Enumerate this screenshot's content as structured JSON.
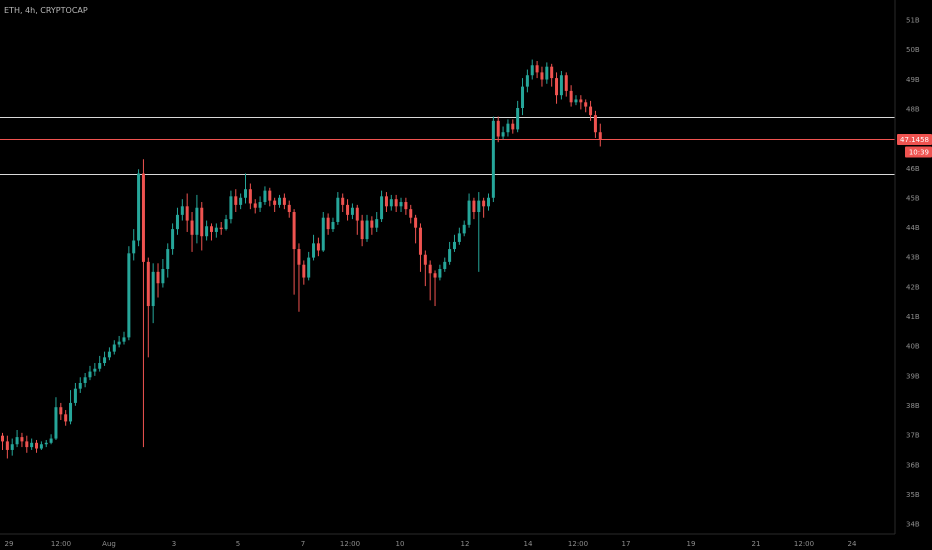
{
  "header": {
    "symbol": "ETH, 4h, CRYPTOCAP"
  },
  "price_tag": {
    "value": "47.1458",
    "countdown": "10:39",
    "color": "#ef5350"
  },
  "colors": {
    "up": "#26a69a",
    "down": "#ef5350",
    "background": "#000000",
    "hline": "#d9d9d9"
  },
  "axes": {
    "y_ticks": [
      "51B",
      "50B",
      "49B",
      "48B",
      "47B",
      "46B",
      "45B",
      "44B",
      "43B",
      "42B",
      "41B",
      "40B",
      "39B",
      "38B",
      "37B",
      "36B",
      "35B",
      "34B"
    ],
    "x_ticks": [
      "29",
      "12:00",
      "Aug",
      "3",
      "5",
      "7",
      "12:00",
      "10",
      "12",
      "14",
      "12:00",
      "17",
      "19",
      "21",
      "12:00",
      "24"
    ]
  },
  "chart_data": {
    "type": "candlestick",
    "title": "ETH, 4h, CRYPTOCAP",
    "y_unit": "B",
    "ylim": [
      33.3,
      51.9
    ],
    "current_value": 47.1458,
    "horizontal_levels": [
      {
        "value": 47.95,
        "color": "#d9d9d9"
      },
      {
        "value": 47.1458,
        "color": "#ef5350"
      },
      {
        "value": 45.95,
        "color": "#d9d9d9"
      }
    ],
    "candles": [
      [
        36.75,
        36.55,
        36.25,
        36.85
      ],
      [
        36.55,
        36.25,
        35.95,
        36.75
      ],
      [
        36.25,
        36.45,
        36.05,
        36.65
      ],
      [
        36.45,
        36.7,
        36.35,
        36.95
      ],
      [
        36.7,
        36.55,
        36.35,
        36.85
      ],
      [
        36.55,
        36.35,
        36.15,
        36.75
      ],
      [
        36.35,
        36.5,
        36.25,
        36.65
      ],
      [
        36.5,
        36.3,
        36.15,
        36.6
      ],
      [
        36.3,
        36.45,
        36.25,
        36.55
      ],
      [
        36.45,
        36.5,
        36.35,
        36.6
      ],
      [
        36.5,
        36.65,
        36.45,
        36.8
      ],
      [
        36.65,
        37.75,
        36.6,
        38.1
      ],
      [
        37.75,
        37.5,
        37.3,
        37.9
      ],
      [
        37.5,
        37.25,
        37.1,
        37.65
      ],
      [
        37.25,
        37.9,
        37.15,
        38.35
      ],
      [
        37.9,
        38.4,
        37.8,
        38.6
      ],
      [
        38.4,
        38.6,
        38.25,
        38.8
      ],
      [
        38.6,
        38.8,
        38.45,
        38.95
      ],
      [
        38.8,
        39.0,
        38.7,
        39.2
      ],
      [
        39.0,
        39.1,
        38.85,
        39.3
      ],
      [
        39.1,
        39.3,
        39.0,
        39.55
      ],
      [
        39.3,
        39.5,
        39.2,
        39.7
      ],
      [
        39.5,
        39.7,
        39.4,
        39.85
      ],
      [
        39.7,
        39.95,
        39.6,
        40.1
      ],
      [
        39.95,
        40.05,
        39.85,
        40.25
      ],
      [
        40.05,
        40.2,
        39.95,
        40.4
      ],
      [
        40.2,
        43.15,
        40.1,
        43.4
      ],
      [
        43.15,
        43.6,
        42.9,
        44.0
      ],
      [
        43.6,
        45.95,
        43.4,
        46.1
      ],
      [
        45.95,
        42.85,
        36.35,
        46.45
      ],
      [
        42.85,
        41.3,
        39.5,
        43.0
      ],
      [
        41.3,
        42.5,
        40.7,
        42.8
      ],
      [
        42.5,
        42.1,
        41.6,
        42.8
      ],
      [
        42.1,
        42.6,
        41.95,
        42.95
      ],
      [
        42.6,
        43.3,
        42.3,
        43.5
      ],
      [
        43.3,
        44.0,
        43.1,
        44.2
      ],
      [
        44.0,
        44.5,
        43.8,
        44.75
      ],
      [
        44.5,
        44.8,
        44.3,
        45.05
      ],
      [
        44.8,
        44.3,
        43.9,
        45.25
      ],
      [
        44.3,
        43.8,
        43.2,
        44.6
      ],
      [
        43.8,
        44.75,
        43.5,
        45.2
      ],
      [
        44.75,
        43.75,
        43.25,
        44.95
      ],
      [
        43.75,
        44.1,
        43.6,
        44.3
      ],
      [
        44.1,
        43.9,
        43.6,
        44.2
      ],
      [
        43.9,
        44.05,
        43.7,
        44.2
      ],
      [
        44.05,
        44.0,
        43.8,
        44.25
      ],
      [
        44.0,
        44.35,
        43.95,
        44.5
      ],
      [
        44.35,
        45.15,
        44.2,
        45.35
      ],
      [
        45.15,
        44.85,
        44.6,
        45.4
      ],
      [
        44.85,
        45.1,
        44.7,
        45.25
      ],
      [
        45.1,
        45.4,
        44.9,
        45.95
      ],
      [
        45.4,
        44.9,
        44.7,
        45.6
      ],
      [
        44.9,
        44.75,
        44.55,
        45.05
      ],
      [
        44.75,
        44.95,
        44.6,
        45.15
      ],
      [
        44.95,
        45.35,
        44.85,
        45.5
      ],
      [
        45.35,
        45.0,
        44.8,
        45.45
      ],
      [
        45.0,
        44.85,
        44.6,
        45.1
      ],
      [
        44.85,
        45.1,
        44.75,
        45.2
      ],
      [
        45.1,
        44.85,
        44.7,
        45.25
      ],
      [
        44.85,
        44.6,
        44.4,
        45.0
      ],
      [
        44.6,
        43.3,
        41.7,
        44.7
      ],
      [
        43.3,
        42.75,
        41.1,
        43.5
      ],
      [
        42.75,
        42.3,
        42.05,
        42.9
      ],
      [
        42.3,
        43.0,
        42.2,
        43.2
      ],
      [
        43.0,
        43.5,
        42.9,
        43.8
      ],
      [
        43.5,
        43.25,
        43.05,
        43.7
      ],
      [
        43.25,
        44.4,
        43.2,
        44.6
      ],
      [
        44.4,
        44.0,
        43.8,
        44.55
      ],
      [
        44.0,
        44.25,
        43.9,
        44.4
      ],
      [
        44.25,
        45.1,
        44.15,
        45.3
      ],
      [
        45.1,
        44.85,
        44.6,
        45.25
      ],
      [
        44.85,
        44.5,
        44.3,
        45.05
      ],
      [
        44.5,
        44.75,
        44.35,
        44.9
      ],
      [
        44.75,
        44.3,
        43.8,
        44.85
      ],
      [
        44.3,
        43.65,
        43.4,
        44.5
      ],
      [
        43.65,
        44.3,
        43.55,
        44.5
      ],
      [
        44.3,
        44.05,
        43.8,
        44.45
      ],
      [
        44.05,
        44.35,
        43.9,
        44.6
      ],
      [
        44.35,
        45.15,
        44.25,
        45.35
      ],
      [
        45.15,
        44.8,
        44.6,
        45.3
      ],
      [
        44.8,
        45.05,
        44.65,
        45.2
      ],
      [
        45.05,
        44.8,
        44.6,
        45.2
      ],
      [
        44.8,
        44.95,
        44.6,
        45.1
      ],
      [
        44.95,
        44.7,
        44.5,
        45.1
      ],
      [
        44.7,
        44.4,
        44.2,
        44.85
      ],
      [
        44.4,
        44.05,
        43.5,
        44.5
      ],
      [
        44.05,
        43.1,
        42.5,
        44.2
      ],
      [
        43.1,
        42.75,
        42.0,
        43.25
      ],
      [
        42.75,
        42.45,
        41.5,
        42.9
      ],
      [
        42.45,
        42.3,
        41.3,
        42.55
      ],
      [
        42.3,
        42.6,
        42.2,
        42.75
      ],
      [
        42.6,
        42.85,
        42.5,
        43.0
      ],
      [
        42.85,
        43.3,
        42.75,
        43.55
      ],
      [
        43.3,
        43.55,
        43.2,
        43.8
      ],
      [
        43.55,
        43.85,
        43.45,
        44.05
      ],
      [
        43.85,
        44.15,
        43.75,
        44.3
      ],
      [
        44.15,
        45.0,
        44.05,
        45.25
      ],
      [
        45.0,
        44.6,
        44.35,
        45.1
      ],
      [
        44.6,
        45.0,
        42.5,
        45.3
      ],
      [
        45.0,
        44.8,
        44.4,
        45.1
      ],
      [
        44.8,
        45.1,
        44.65,
        45.25
      ],
      [
        45.1,
        47.8,
        44.95,
        47.95
      ],
      [
        47.8,
        47.25,
        47.05,
        47.95
      ],
      [
        47.25,
        47.4,
        47.15,
        47.6
      ],
      [
        47.4,
        47.7,
        47.25,
        47.85
      ],
      [
        47.7,
        47.5,
        47.35,
        47.85
      ],
      [
        47.5,
        48.25,
        47.4,
        48.5
      ],
      [
        48.25,
        49.0,
        48.0,
        49.3
      ],
      [
        49.0,
        49.4,
        48.8,
        49.6
      ],
      [
        49.4,
        49.75,
        49.25,
        49.95
      ],
      [
        49.75,
        49.5,
        49.3,
        49.9
      ],
      [
        49.5,
        49.25,
        49.0,
        49.7
      ],
      [
        49.25,
        49.7,
        49.1,
        49.85
      ],
      [
        49.7,
        49.3,
        49.0,
        49.8
      ],
      [
        49.3,
        48.7,
        48.4,
        49.5
      ],
      [
        48.7,
        49.4,
        48.55,
        49.55
      ],
      [
        49.4,
        48.85,
        48.65,
        49.5
      ],
      [
        48.85,
        48.45,
        48.3,
        49.05
      ],
      [
        48.45,
        48.55,
        48.35,
        48.7
      ],
      [
        48.55,
        48.45,
        48.2,
        48.7
      ],
      [
        48.45,
        48.3,
        48.1,
        48.55
      ],
      [
        48.3,
        48.0,
        47.8,
        48.5
      ],
      [
        48.0,
        47.4,
        47.2,
        48.15
      ],
      [
        47.4,
        47.1458,
        46.9,
        47.7
      ]
    ]
  }
}
